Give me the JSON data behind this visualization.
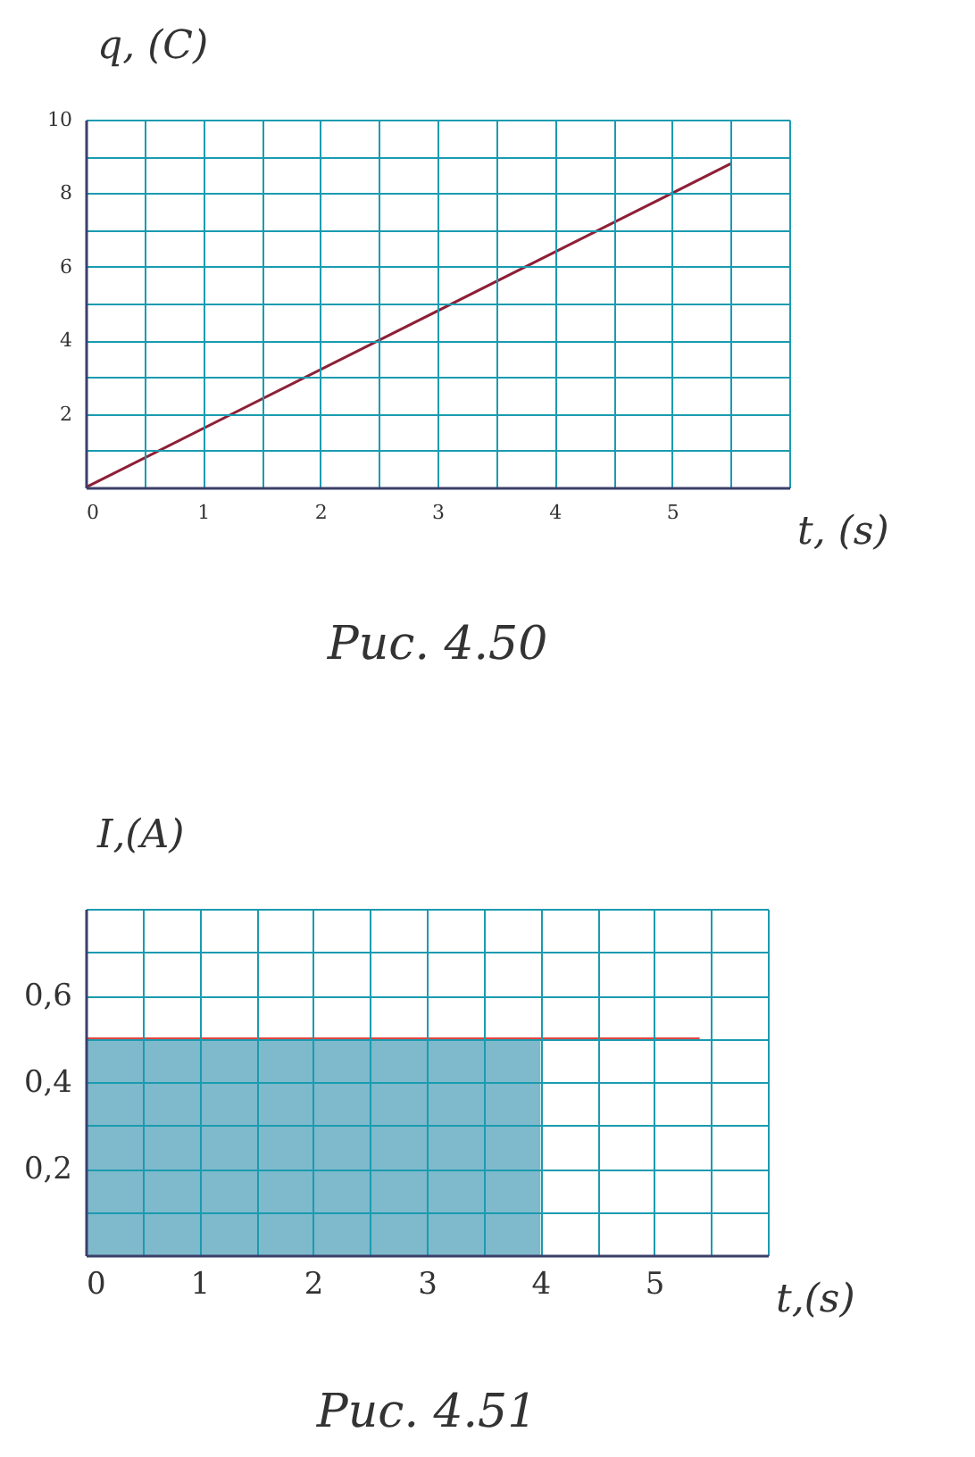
{
  "chart_data": [
    {
      "type": "line",
      "xlabel": "t, (s)",
      "ylabel": "q, (C)",
      "annotations": [
        "Рис. 4.50"
      ],
      "xlim": [
        0,
        6
      ],
      "ylim": [
        0,
        10
      ],
      "xticks": [
        0,
        {
          "value": 0.5,
          "label": null
        },
        1,
        {
          "value": 1.5,
          "label": null
        },
        2,
        {
          "value": 2.5,
          "label": null
        },
        3,
        {
          "value": 3.5,
          "label": null
        },
        4,
        {
          "value": 4.5,
          "label": null
        },
        5,
        {
          "value": 5.5,
          "label": null
        },
        {
          "value": 6,
          "label": null
        }
      ],
      "yticks": [
        {
          "value": 0,
          "label": null
        },
        {
          "value": 1,
          "label": null
        },
        2,
        {
          "value": 3,
          "label": null
        },
        4,
        {
          "value": 5,
          "label": null
        },
        6,
        {
          "value": 7,
          "label": null
        },
        8,
        {
          "value": 9,
          "label": null
        },
        10
      ],
      "grid": true,
      "series": [
        {
          "type": "line",
          "color": "#8e1f35",
          "x": [
            0,
            5.5
          ],
          "values": [
            0,
            8.8
          ]
        }
      ]
    },
    {
      "type": "line",
      "xlabel": "t,(s)",
      "ylabel": "I,(A)",
      "annotations": [
        "Рис. 4.51"
      ],
      "xlim": [
        0,
        6
      ],
      "ylim": [
        0,
        0.8
      ],
      "xticks": [
        0,
        {
          "value": 0.5,
          "label": null
        },
        1,
        {
          "value": 1.5,
          "label": null
        },
        2,
        {
          "value": 2.5,
          "label": null
        },
        3,
        {
          "value": 3.5,
          "label": null
        },
        4,
        {
          "value": 4.5,
          "label": null
        },
        5,
        {
          "value": 5.5,
          "label": null
        },
        {
          "value": 6,
          "label": null
        }
      ],
      "yticks": [
        {
          "value": 0,
          "label": null
        },
        {
          "value": 0.1,
          "label": null
        },
        {
          "value": 0.2,
          "label": "0,2"
        },
        {
          "value": 0.3,
          "label": null
        },
        {
          "value": 0.4,
          "label": "0,4"
        },
        {
          "value": 0.5,
          "label": null
        },
        {
          "value": 0.6,
          "label": "0,6"
        },
        {
          "value": 0.7,
          "label": null
        },
        {
          "value": 0.8,
          "label": null
        }
      ],
      "grid": true,
      "series": [
        {
          "type": "area",
          "color": "#7fb9cc",
          "x": [
            0,
            4
          ],
          "values": [
            0.5,
            0.5
          ]
        },
        {
          "type": "line",
          "color": "#e2453f",
          "x": [
            0,
            5.4
          ],
          "values": [
            0.5,
            0.5
          ]
        }
      ]
    }
  ]
}
